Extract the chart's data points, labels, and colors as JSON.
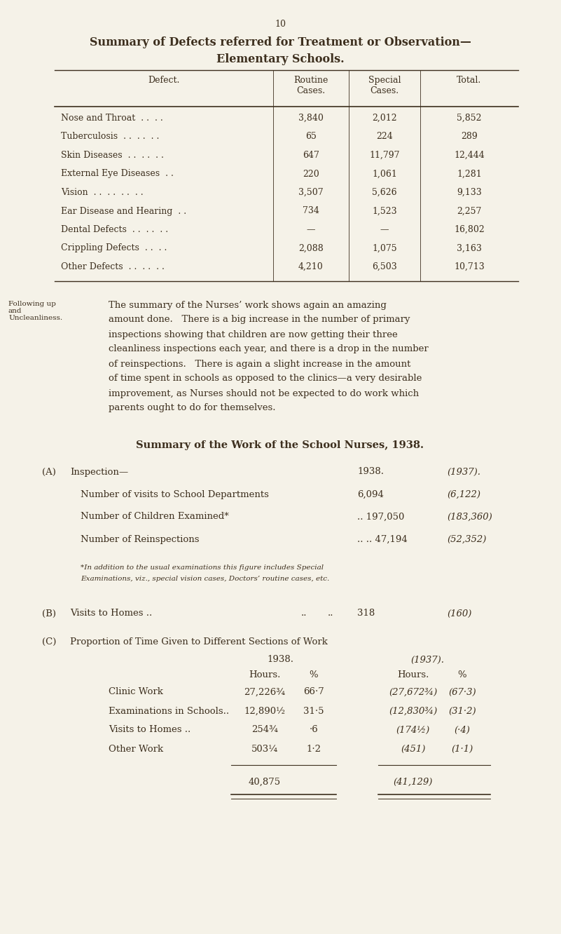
{
  "bg_color": "#f5f2e8",
  "text_color": "#3d2f1e",
  "page_number": "10",
  "title1": "Summary of Defects referred for Treatment or Observation—",
  "title2": "Elementary Schools.",
  "table1_rows": [
    [
      "Nose and Throat  . .  . .",
      "3,840",
      "2,012",
      "5,852"
    ],
    [
      "Tuberculosis  . .  . .  . .",
      "65",
      "224",
      "289"
    ],
    [
      "Skin Diseases  . .  . .  . .",
      "647",
      "11,797",
      "12,444"
    ],
    [
      "External Eye Diseases  . .",
      "220",
      "1,061",
      "1,281"
    ],
    [
      "Vision  . .  . .  . .  . .",
      "3,507",
      "5,626",
      "9,133"
    ],
    [
      "Ear Disease and Hearing  . .",
      "734",
      "1,523",
      "2,257"
    ],
    [
      "Dental Defects  . .  . .  . .",
      "—",
      "—",
      "16,802"
    ],
    [
      "Crippling Defects  . .  . .",
      "2,088",
      "1,075",
      "3,163"
    ],
    [
      "Other Defects  . .  . .  . .",
      "4,210",
      "6,503",
      "10,713"
    ]
  ],
  "sidebar_text": "Following up\nand\nUncleanliness.",
  "para_lines": [
    "The summary of the Nurses’ work shows again an amazing",
    "amount done.   There is a big increase in the number of primary",
    "inspections showing that children are now getting their three",
    "cleanliness inspections each year, and there is a drop in the number",
    "of reinspections.   There is again a slight increase in the amount",
    "of time spent in schools as opposed to the clinics—a very desirable",
    "improvement, as Nurses should not be expected to do work which",
    "parents ought to do for themselves."
  ],
  "summary_title": "Summary of the Work of the School Nurses, 1938.",
  "section_a_rows": [
    [
      "Number of visits to School Departments",
      "6,094",
      "(6,122)"
    ],
    [
      "Number of Children Examined*",
      ".. 197,050",
      "(183,360)"
    ],
    [
      "Number of Reinspections",
      ".. .. 47,194",
      "(52,352)"
    ]
  ],
  "footnote_lines": [
    "*In addition to the usual examinations this figure includes Special",
    "Examinations, viz., special vision cases, Doctors’ routine cases, etc."
  ],
  "section_b_val": "318",
  "section_b_prev": "(160)",
  "section_c_rows": [
    [
      "Clinic Work",
      "27,226¾",
      "66·7",
      "(27,672¾)",
      "(67·3)"
    ],
    [
      "Examinations in Schools..",
      "12,890½",
      "31·5",
      "(12,830¾)",
      "(31·2)"
    ],
    [
      "Visits to Homes ..",
      "254¾",
      "·6",
      "(174½)",
      "(·4)"
    ],
    [
      "Other Work",
      "503¼",
      "1·2",
      "(451)",
      "(1·1)"
    ]
  ],
  "section_c_total1": "40,875",
  "section_c_total2": "(41,129)"
}
